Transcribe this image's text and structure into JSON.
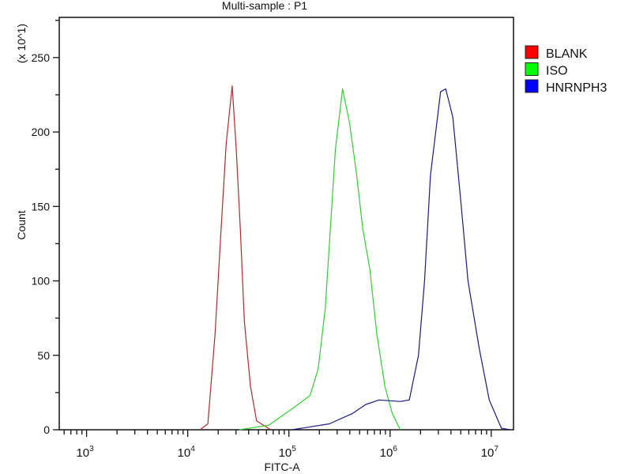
{
  "chart_data": {
    "type": "line",
    "title": "Multi-sample : P1",
    "xlabel": "FITC-A",
    "ylabel": "Count",
    "y_multiplier_label": "(x 10^1)",
    "x_scale": "log",
    "xlim": [
      537,
      16600000
    ],
    "ylim": [
      0,
      277
    ],
    "x_ticks": [
      1000,
      10000,
      100000,
      1000000,
      10000000
    ],
    "x_tick_labels": [
      [
        "10",
        "3"
      ],
      [
        "10",
        "4"
      ],
      [
        "10",
        "5"
      ],
      [
        "10",
        "6"
      ],
      [
        "10",
        "7"
      ]
    ],
    "y_ticks": [
      0,
      50,
      100,
      150,
      200,
      250
    ],
    "grid": false,
    "legend_position": "right",
    "series": [
      {
        "name": "BLANK",
        "color": "#ff0000",
        "line_color": "#b02a2a",
        "x": [
          13200,
          15800,
          18600,
          21400,
          24000,
          27500,
          30200,
          33100,
          36300,
          41700,
          47900,
          66100
        ],
        "y": [
          0,
          4,
          64,
          135,
          192,
          231,
          188,
          135,
          73,
          29,
          6,
          0
        ]
      },
      {
        "name": "ISO",
        "color": "#00ff00",
        "line_color": "#33cc33",
        "x": [
          32400,
          63100,
          107000,
          162000,
          195000,
          229000,
          257000,
          288000,
          339000,
          398000,
          468000,
          537000,
          631000,
          741000,
          891000,
          1050000,
          1260000
        ],
        "y": [
          0,
          3,
          14,
          23,
          41,
          82,
          135,
          188,
          229,
          206,
          171,
          135,
          108,
          64,
          29,
          11,
          0
        ]
      },
      {
        "name": "HNRNPH3",
        "color": "#0000ff",
        "line_color": "#1a1a80",
        "x": [
          107000,
          251000,
          427000,
          575000,
          776000,
          1260000,
          1550000,
          1910000,
          2190000,
          2510000,
          3160000,
          3550000,
          4170000,
          5010000,
          5890000,
          7590000,
          9550000,
          12600000,
          15500000
        ],
        "y": [
          0,
          4,
          11,
          17,
          20,
          19,
          20,
          50,
          100,
          171,
          227,
          229,
          210,
          153,
          100,
          55,
          20,
          1,
          0
        ]
      }
    ]
  }
}
